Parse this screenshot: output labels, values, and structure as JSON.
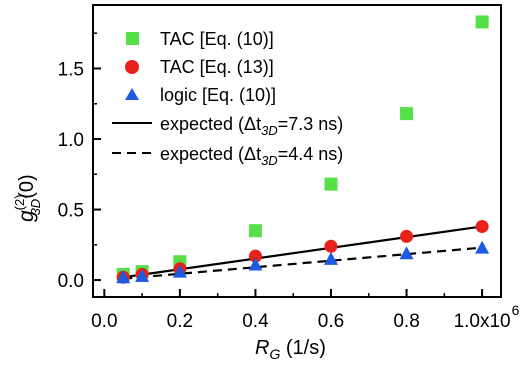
{
  "chart_data": {
    "type": "scatter",
    "xlabel": {
      "main": "R",
      "sub": "G",
      "unit": " (1/s)"
    },
    "ylabel": {
      "main": "g",
      "sup": "(2)",
      "sub": "3D",
      "arg": "(0)"
    },
    "xlim": [
      -0.03,
      1.05
    ],
    "ylim": [
      -0.12,
      1.95
    ],
    "xticks": [
      0.0,
      0.2,
      0.4,
      0.6,
      0.8,
      1.0
    ],
    "xtick_labels": [
      "0.0",
      "0.2",
      "0.4",
      "0.6",
      "0.8",
      "1.0x10"
    ],
    "x_exponent": "6",
    "yticks": [
      0.0,
      0.5,
      1.0,
      1.5
    ],
    "ytick_labels": [
      "0.0",
      "0.5",
      "1.0",
      "1.5"
    ],
    "grid": false,
    "legend_position": "top-left",
    "series": [
      {
        "name": "TAC [Eq. (10)]",
        "kind": "marker",
        "marker": "square",
        "color": "#55e04a",
        "x": [
          0.05,
          0.1,
          0.2,
          0.4,
          0.6,
          0.8,
          1.0
        ],
        "y": [
          0.04,
          0.06,
          0.13,
          0.35,
          0.68,
          1.18,
          1.83
        ]
      },
      {
        "name": "TAC [Eq. (13)]",
        "kind": "marker",
        "marker": "circle",
        "color": "#e8201a",
        "x": [
          0.05,
          0.1,
          0.2,
          0.4,
          0.6,
          0.8,
          1.0
        ],
        "y": [
          0.02,
          0.04,
          0.08,
          0.17,
          0.24,
          0.31,
          0.38
        ]
      },
      {
        "name": "logic [Eq. (10)]",
        "kind": "marker",
        "marker": "triangle",
        "color": "#1e5ae0",
        "x": [
          0.05,
          0.1,
          0.2,
          0.4,
          0.6,
          0.8,
          1.0
        ],
        "y": [
          0.02,
          0.03,
          0.06,
          0.11,
          0.15,
          0.19,
          0.23
        ]
      },
      {
        "name_prefix": "expected (Δt",
        "name_sub": "3D",
        "name_suffix": "=7.3 ns)",
        "kind": "line",
        "dash": "solid",
        "color": "#000000",
        "x": [
          0.05,
          1.0
        ],
        "y": [
          0.02,
          0.38
        ]
      },
      {
        "name_prefix": "expected (Δt",
        "name_sub": "3D",
        "name_suffix": "=4.4 ns)",
        "kind": "line",
        "dash": "dashed",
        "color": "#000000",
        "x": [
          0.05,
          1.0
        ],
        "y": [
          0.01,
          0.23
        ]
      }
    ]
  }
}
